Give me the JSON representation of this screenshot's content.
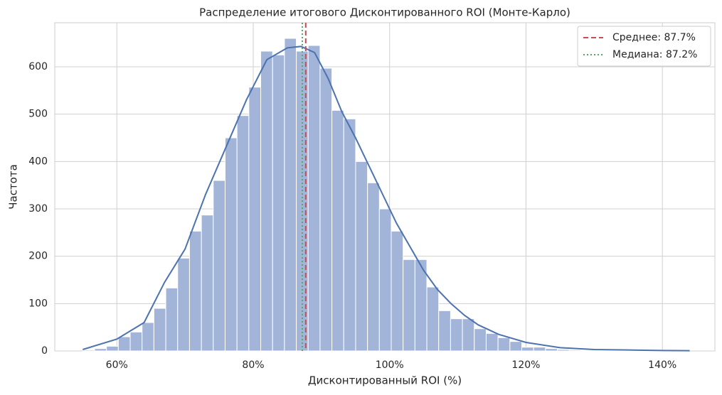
{
  "chart_data": {
    "type": "histogram",
    "title": "Распределение итогового Дисконтированного ROI (Монте-Карло)",
    "xlabel": "Дисконтированный ROI (%)",
    "ylabel": "Частота",
    "bins": [
      55.0,
      56.74,
      58.48,
      60.22,
      61.96,
      63.7,
      65.44,
      67.18,
      68.92,
      70.66,
      72.4,
      74.14,
      75.88,
      77.62,
      79.36,
      81.1,
      82.84,
      84.58,
      86.32,
      88.06,
      89.8,
      91.54,
      93.28,
      95.02,
      96.76,
      98.5,
      100.24,
      101.98,
      103.72,
      105.46,
      107.2,
      108.94,
      110.68,
      112.42,
      114.16,
      115.9,
      117.64,
      119.38,
      121.12,
      122.86,
      124.6,
      126.34,
      128.08,
      129.82,
      131.56,
      133.3,
      135.04,
      136.78,
      138.52,
      140.26,
      142.0,
      143.74
    ],
    "values": [
      2,
      5,
      10,
      30,
      40,
      60,
      90,
      133,
      196,
      253,
      287,
      360,
      450,
      497,
      557,
      633,
      625,
      660,
      633,
      645,
      597,
      508,
      490,
      400,
      355,
      300,
      253,
      193,
      193,
      135,
      85,
      68,
      68,
      47,
      37,
      28,
      20,
      8,
      8,
      5,
      3,
      2,
      1,
      1,
      1,
      1,
      1,
      1,
      1,
      1,
      1
    ],
    "color": "#a2b5d8",
    "kde": {
      "color": "#4c72b0",
      "x": [
        55,
        60,
        64,
        67,
        70,
        73,
        76,
        79,
        82,
        85,
        87,
        89,
        91,
        93,
        95,
        97,
        99,
        101,
        103,
        105,
        107,
        109,
        111,
        113,
        116,
        120,
        125,
        130,
        135,
        140,
        144
      ],
      "values": [
        3,
        25,
        60,
        145,
        215,
        330,
        430,
        530,
        615,
        640,
        643,
        630,
        575,
        505,
        450,
        390,
        330,
        270,
        220,
        170,
        130,
        100,
        75,
        55,
        35,
        18,
        7,
        3,
        2,
        1,
        0.5
      ]
    },
    "reference_lines": [
      {
        "name": "Среднее: 87.7%",
        "value": 87.7,
        "color": "#c44e52",
        "style": "dashed"
      },
      {
        "name": "Медиана: 87.2%",
        "value": 87.2,
        "color": "#55a868",
        "style": "dotted"
      }
    ],
    "legend": "upper right",
    "grid": true,
    "xlim": [
      50.9,
      147.7
    ],
    "ylim": [
      0,
      693
    ],
    "xticks": [
      {
        "value": 60,
        "label": "60%"
      },
      {
        "value": 80,
        "label": "80%"
      },
      {
        "value": 100,
        "label": "100%"
      },
      {
        "value": 120,
        "label": "120%"
      },
      {
        "value": 140,
        "label": "140%"
      }
    ],
    "yticks": [
      0,
      100,
      200,
      300,
      400,
      500,
      600
    ]
  }
}
